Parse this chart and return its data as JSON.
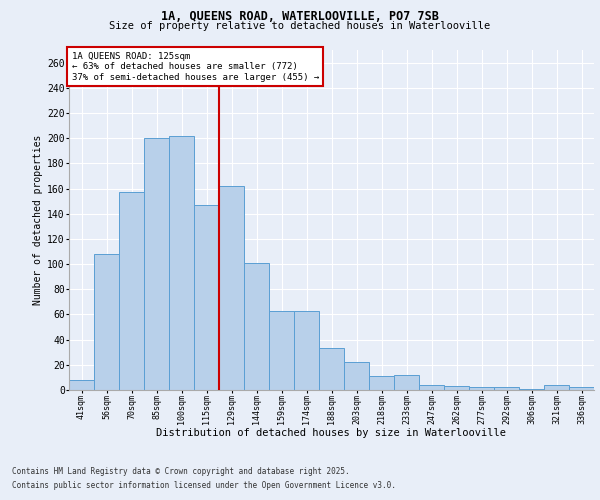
{
  "title1": "1A, QUEENS ROAD, WATERLOOVILLE, PO7 7SB",
  "title2": "Size of property relative to detached houses in Waterlooville",
  "xlabel": "Distribution of detached houses by size in Waterlooville",
  "ylabel": "Number of detached properties",
  "categories": [
    "41sqm",
    "56sqm",
    "70sqm",
    "85sqm",
    "100sqm",
    "115sqm",
    "129sqm",
    "144sqm",
    "159sqm",
    "174sqm",
    "188sqm",
    "203sqm",
    "218sqm",
    "233sqm",
    "247sqm",
    "262sqm",
    "277sqm",
    "292sqm",
    "306sqm",
    "321sqm",
    "336sqm"
  ],
  "values": [
    8,
    108,
    157,
    200,
    202,
    147,
    162,
    101,
    63,
    63,
    33,
    22,
    11,
    12,
    4,
    3,
    2,
    2,
    1,
    4,
    2
  ],
  "bar_color": "#b8d0ea",
  "bar_edge_color": "#5a9fd4",
  "vline_color": "#cc0000",
  "annotation_title": "1A QUEENS ROAD: 125sqm",
  "annotation_line1": "← 63% of detached houses are smaller (772)",
  "annotation_line2": "37% of semi-detached houses are larger (455) →",
  "ylim": [
    0,
    270
  ],
  "yticks": [
    0,
    20,
    40,
    60,
    80,
    100,
    120,
    140,
    160,
    180,
    200,
    220,
    240,
    260
  ],
  "footer1": "Contains HM Land Registry data © Crown copyright and database right 2025.",
  "footer2": "Contains public sector information licensed under the Open Government Licence v3.0.",
  "bg_color": "#e8eef8",
  "plot_bg_color": "#e8eef8"
}
